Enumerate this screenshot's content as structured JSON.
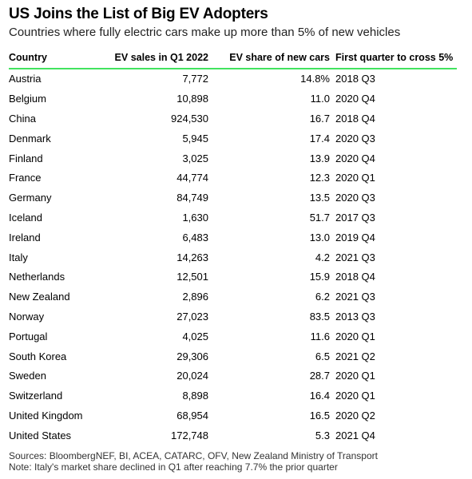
{
  "title": "US Joins the List of Big EV Adopters",
  "subtitle": "Countries where fully electric cars make up more than 5% of new vehicles",
  "chart_data": {
    "type": "table",
    "columns": [
      "Country",
      "EV sales in Q1 2022",
      "EV share of new cars",
      "First quarter to cross 5%"
    ],
    "rows": [
      {
        "country": "Austria",
        "sales": "7,772",
        "share": "14.8%",
        "quarter": "2018 Q3"
      },
      {
        "country": "Belgium",
        "sales": "10,898",
        "share": "11.0",
        "quarter": "2020 Q4"
      },
      {
        "country": "China",
        "sales": "924,530",
        "share": "16.7",
        "quarter": "2018 Q4"
      },
      {
        "country": "Denmark",
        "sales": "5,945",
        "share": "17.4",
        "quarter": "2020 Q3"
      },
      {
        "country": "Finland",
        "sales": "3,025",
        "share": "13.9",
        "quarter": "2020 Q4"
      },
      {
        "country": "France",
        "sales": "44,774",
        "share": "12.3",
        "quarter": "2020 Q1"
      },
      {
        "country": "Germany",
        "sales": "84,749",
        "share": "13.5",
        "quarter": "2020 Q3"
      },
      {
        "country": "Iceland",
        "sales": "1,630",
        "share": "51.7",
        "quarter": "2017 Q3"
      },
      {
        "country": "Ireland",
        "sales": "6,483",
        "share": "13.0",
        "quarter": "2019 Q4"
      },
      {
        "country": "Italy",
        "sales": "14,263",
        "share": "4.2",
        "quarter": "2021 Q3"
      },
      {
        "country": "Netherlands",
        "sales": "12,501",
        "share": "15.9",
        "quarter": "2018 Q4"
      },
      {
        "country": "New Zealand",
        "sales": "2,896",
        "share": "6.2",
        "quarter": "2021 Q3"
      },
      {
        "country": "Norway",
        "sales": "27,023",
        "share": "83.5",
        "quarter": "2013 Q3"
      },
      {
        "country": "Portugal",
        "sales": "4,025",
        "share": "11.6",
        "quarter": "2020 Q1"
      },
      {
        "country": "South Korea",
        "sales": "29,306",
        "share": "6.5",
        "quarter": "2021 Q2"
      },
      {
        "country": "Sweden",
        "sales": "20,024",
        "share": "28.7",
        "quarter": "2020 Q1"
      },
      {
        "country": "Switzerland",
        "sales": "8,898",
        "share": "16.4",
        "quarter": "2020 Q1"
      },
      {
        "country": "United Kingdom",
        "sales": "68,954",
        "share": "16.5",
        "quarter": "2020 Q2"
      },
      {
        "country": "United States",
        "sales": "172,748",
        "share": "5.3",
        "quarter": "2021 Q4"
      }
    ]
  },
  "footer": {
    "sources": "Sources: BloombergNEF, BI, ACEA, CATARC, OFV, New Zealand Ministry of Transport",
    "note": "Note: Italy's market share declined in Q1 after reaching 7.7% the prior quarter"
  },
  "colors": {
    "header_rule": "#42e35f"
  }
}
